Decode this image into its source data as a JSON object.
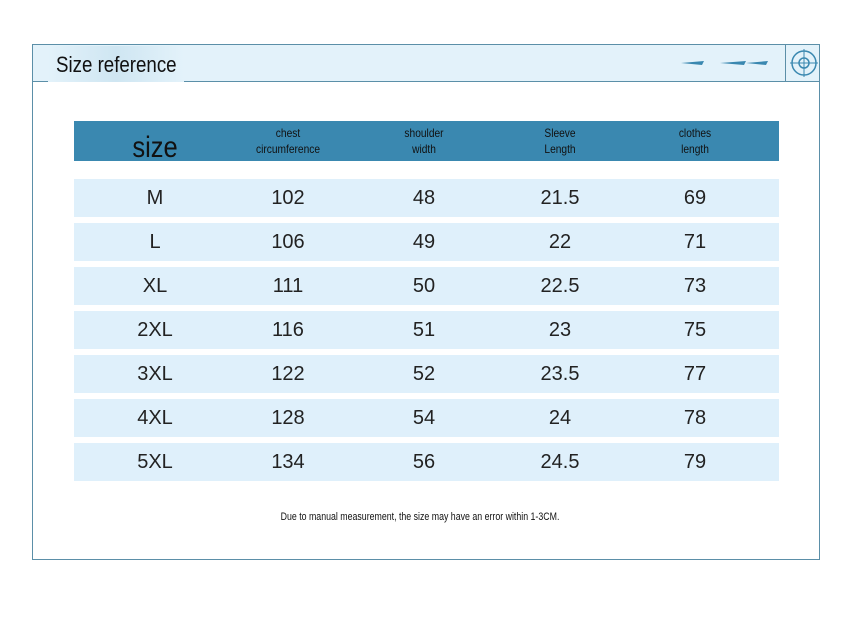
{
  "header": {
    "title": "Size reference"
  },
  "table": {
    "headers": [
      [
        "size"
      ],
      [
        "chest",
        "circumference"
      ],
      [
        "shoulder",
        "width"
      ],
      [
        "Sleeve",
        "Length"
      ],
      [
        "clothes",
        "length"
      ]
    ],
    "rows": [
      [
        "M",
        "102",
        "48",
        "21.5",
        "69"
      ],
      [
        "L",
        "106",
        "49",
        "22",
        "71"
      ],
      [
        "XL",
        "111",
        "50",
        "22.5",
        "73"
      ],
      [
        "2XL",
        "116",
        "51",
        "23",
        "75"
      ],
      [
        "3XL",
        "122",
        "52",
        "23.5",
        "77"
      ],
      [
        "4XL",
        "128",
        "54",
        "24",
        "78"
      ],
      [
        "5XL",
        "134",
        "56",
        "24.5",
        "79"
      ]
    ]
  },
  "note": "Due to manual measurement, the size may have an error within 1-3CM."
}
